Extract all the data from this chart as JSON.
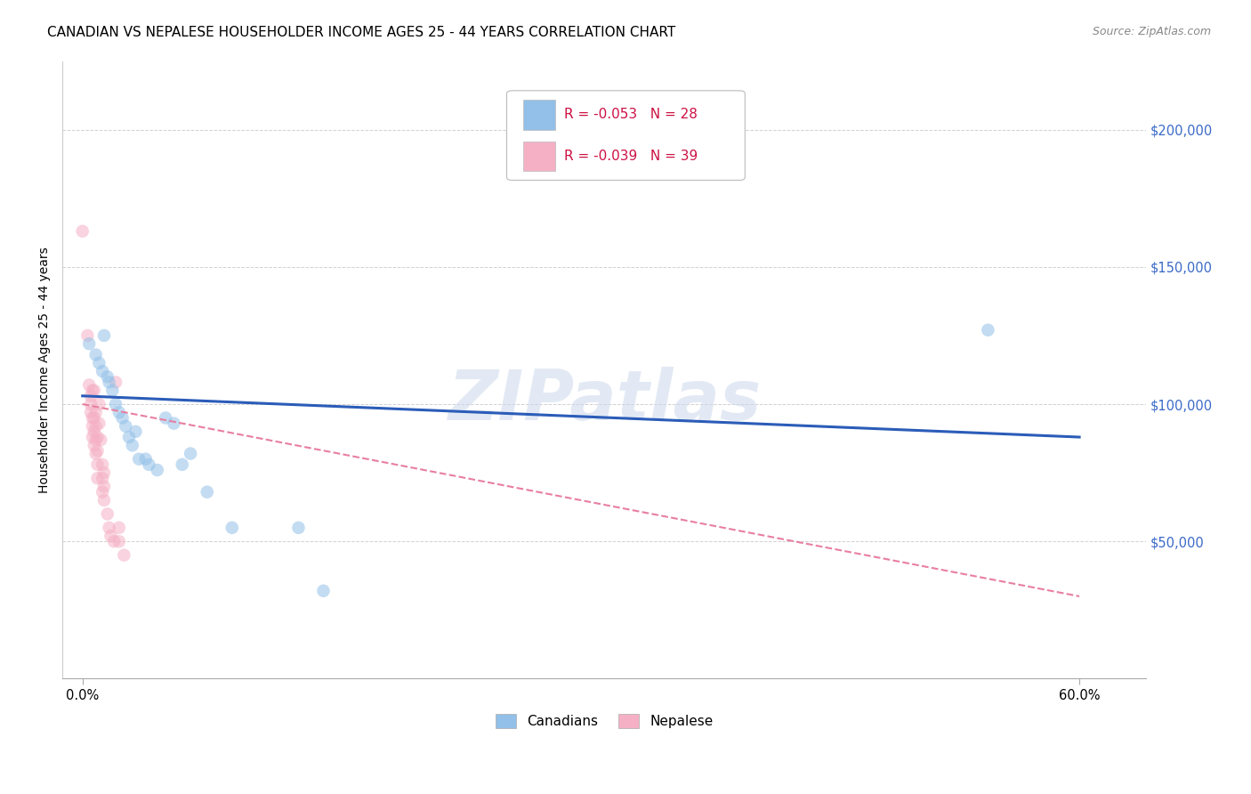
{
  "title": "CANADIAN VS NEPALESE HOUSEHOLDER INCOME AGES 25 - 44 YEARS CORRELATION CHART",
  "source": "Source: ZipAtlas.com",
  "ylabel": "Householder Income Ages 25 - 44 years",
  "ytick_labels": [
    "$50,000",
    "$100,000",
    "$150,000",
    "$200,000"
  ],
  "ytick_vals": [
    50000,
    100000,
    150000,
    200000
  ],
  "xtick_labels": [
    "0.0%",
    "60.0%"
  ],
  "xtick_vals": [
    0.0,
    0.6
  ],
  "ylim": [
    0,
    225000
  ],
  "xlim": [
    -0.012,
    0.64
  ],
  "canadians_x": [
    0.004,
    0.008,
    0.01,
    0.012,
    0.013,
    0.015,
    0.016,
    0.018,
    0.02,
    0.022,
    0.024,
    0.026,
    0.028,
    0.03,
    0.032,
    0.034,
    0.038,
    0.04,
    0.045,
    0.05,
    0.055,
    0.06,
    0.065,
    0.075,
    0.09,
    0.13,
    0.145,
    0.545
  ],
  "canadians_y": [
    122000,
    118000,
    115000,
    112000,
    125000,
    110000,
    108000,
    105000,
    100000,
    97000,
    95000,
    92000,
    88000,
    85000,
    90000,
    80000,
    80000,
    78000,
    76000,
    95000,
    93000,
    78000,
    82000,
    68000,
    55000,
    55000,
    32000,
    127000
  ],
  "nepalese_x": [
    0.0,
    0.003,
    0.004,
    0.005,
    0.005,
    0.005,
    0.006,
    0.006,
    0.006,
    0.006,
    0.007,
    0.007,
    0.007,
    0.007,
    0.008,
    0.008,
    0.008,
    0.008,
    0.009,
    0.009,
    0.009,
    0.009,
    0.01,
    0.01,
    0.011,
    0.012,
    0.012,
    0.012,
    0.013,
    0.013,
    0.013,
    0.015,
    0.016,
    0.017,
    0.019,
    0.02,
    0.022,
    0.022,
    0.025
  ],
  "nepalese_y": [
    163000,
    125000,
    107000,
    103000,
    100000,
    97000,
    105000,
    95000,
    92000,
    88000,
    105000,
    95000,
    90000,
    85000,
    97000,
    92000,
    87000,
    82000,
    88000,
    83000,
    78000,
    73000,
    100000,
    93000,
    87000,
    78000,
    73000,
    68000,
    75000,
    70000,
    65000,
    60000,
    55000,
    52000,
    50000,
    108000,
    55000,
    50000,
    45000
  ],
  "canadian_color": "#92c0e8",
  "nepalese_color": "#f5b0c5",
  "canadian_line_color": "#2b5cb8",
  "nepalese_line_color": "#e87fa0",
  "r_canadian": "-0.053",
  "n_canadian": "28",
  "r_nepalese": "-0.039",
  "n_nepalese": "39",
  "watermark": "ZIPatlas",
  "marker_size": 110,
  "marker_alpha": 0.55,
  "title_fontsize": 11,
  "tick_fontsize": 10.5
}
